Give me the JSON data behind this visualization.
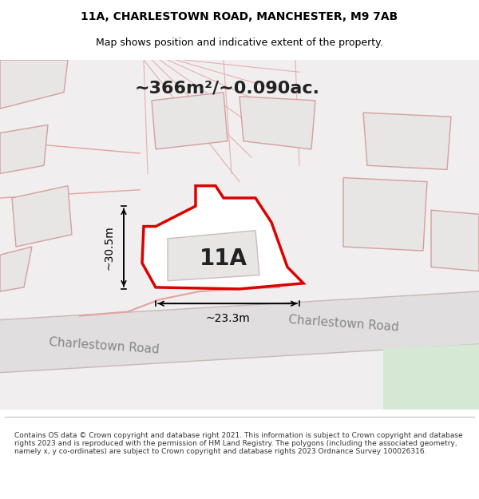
{
  "title_line1": "11A, CHARLESTOWN ROAD, MANCHESTER, M9 7AB",
  "title_line2": "Map shows position and indicative extent of the property.",
  "area_label": "~366m²/~0.090ac.",
  "plot_label": "11A",
  "dim_height": "~30.5m",
  "dim_width": "~23.3m",
  "road_label1": "Charlestown Road",
  "road_label2": "Charlestown Road",
  "footer_text": "Contains OS data © Crown copyright and database right 2021. This information is subject to Crown copyright and database rights 2023 and is reproduced with the permission of HM Land Registry. The polygons (including the associated geometry, namely x, y co-ordinates) are subject to Crown copyright and database rights 2023 Ordnance Survey 100026316.",
  "bg_color": "#f5f5f5",
  "map_bg": "#f0eeee",
  "road_bg": "#e8e8e8",
  "plot_fill": "#ffffff",
  "plot_edge": "#dd0000",
  "dim_color": "#111111",
  "road_color": "#f5c8c8",
  "green_color": "#d4e8d4",
  "building_color": "#e0dede",
  "building_edge": "#ccbbbb"
}
